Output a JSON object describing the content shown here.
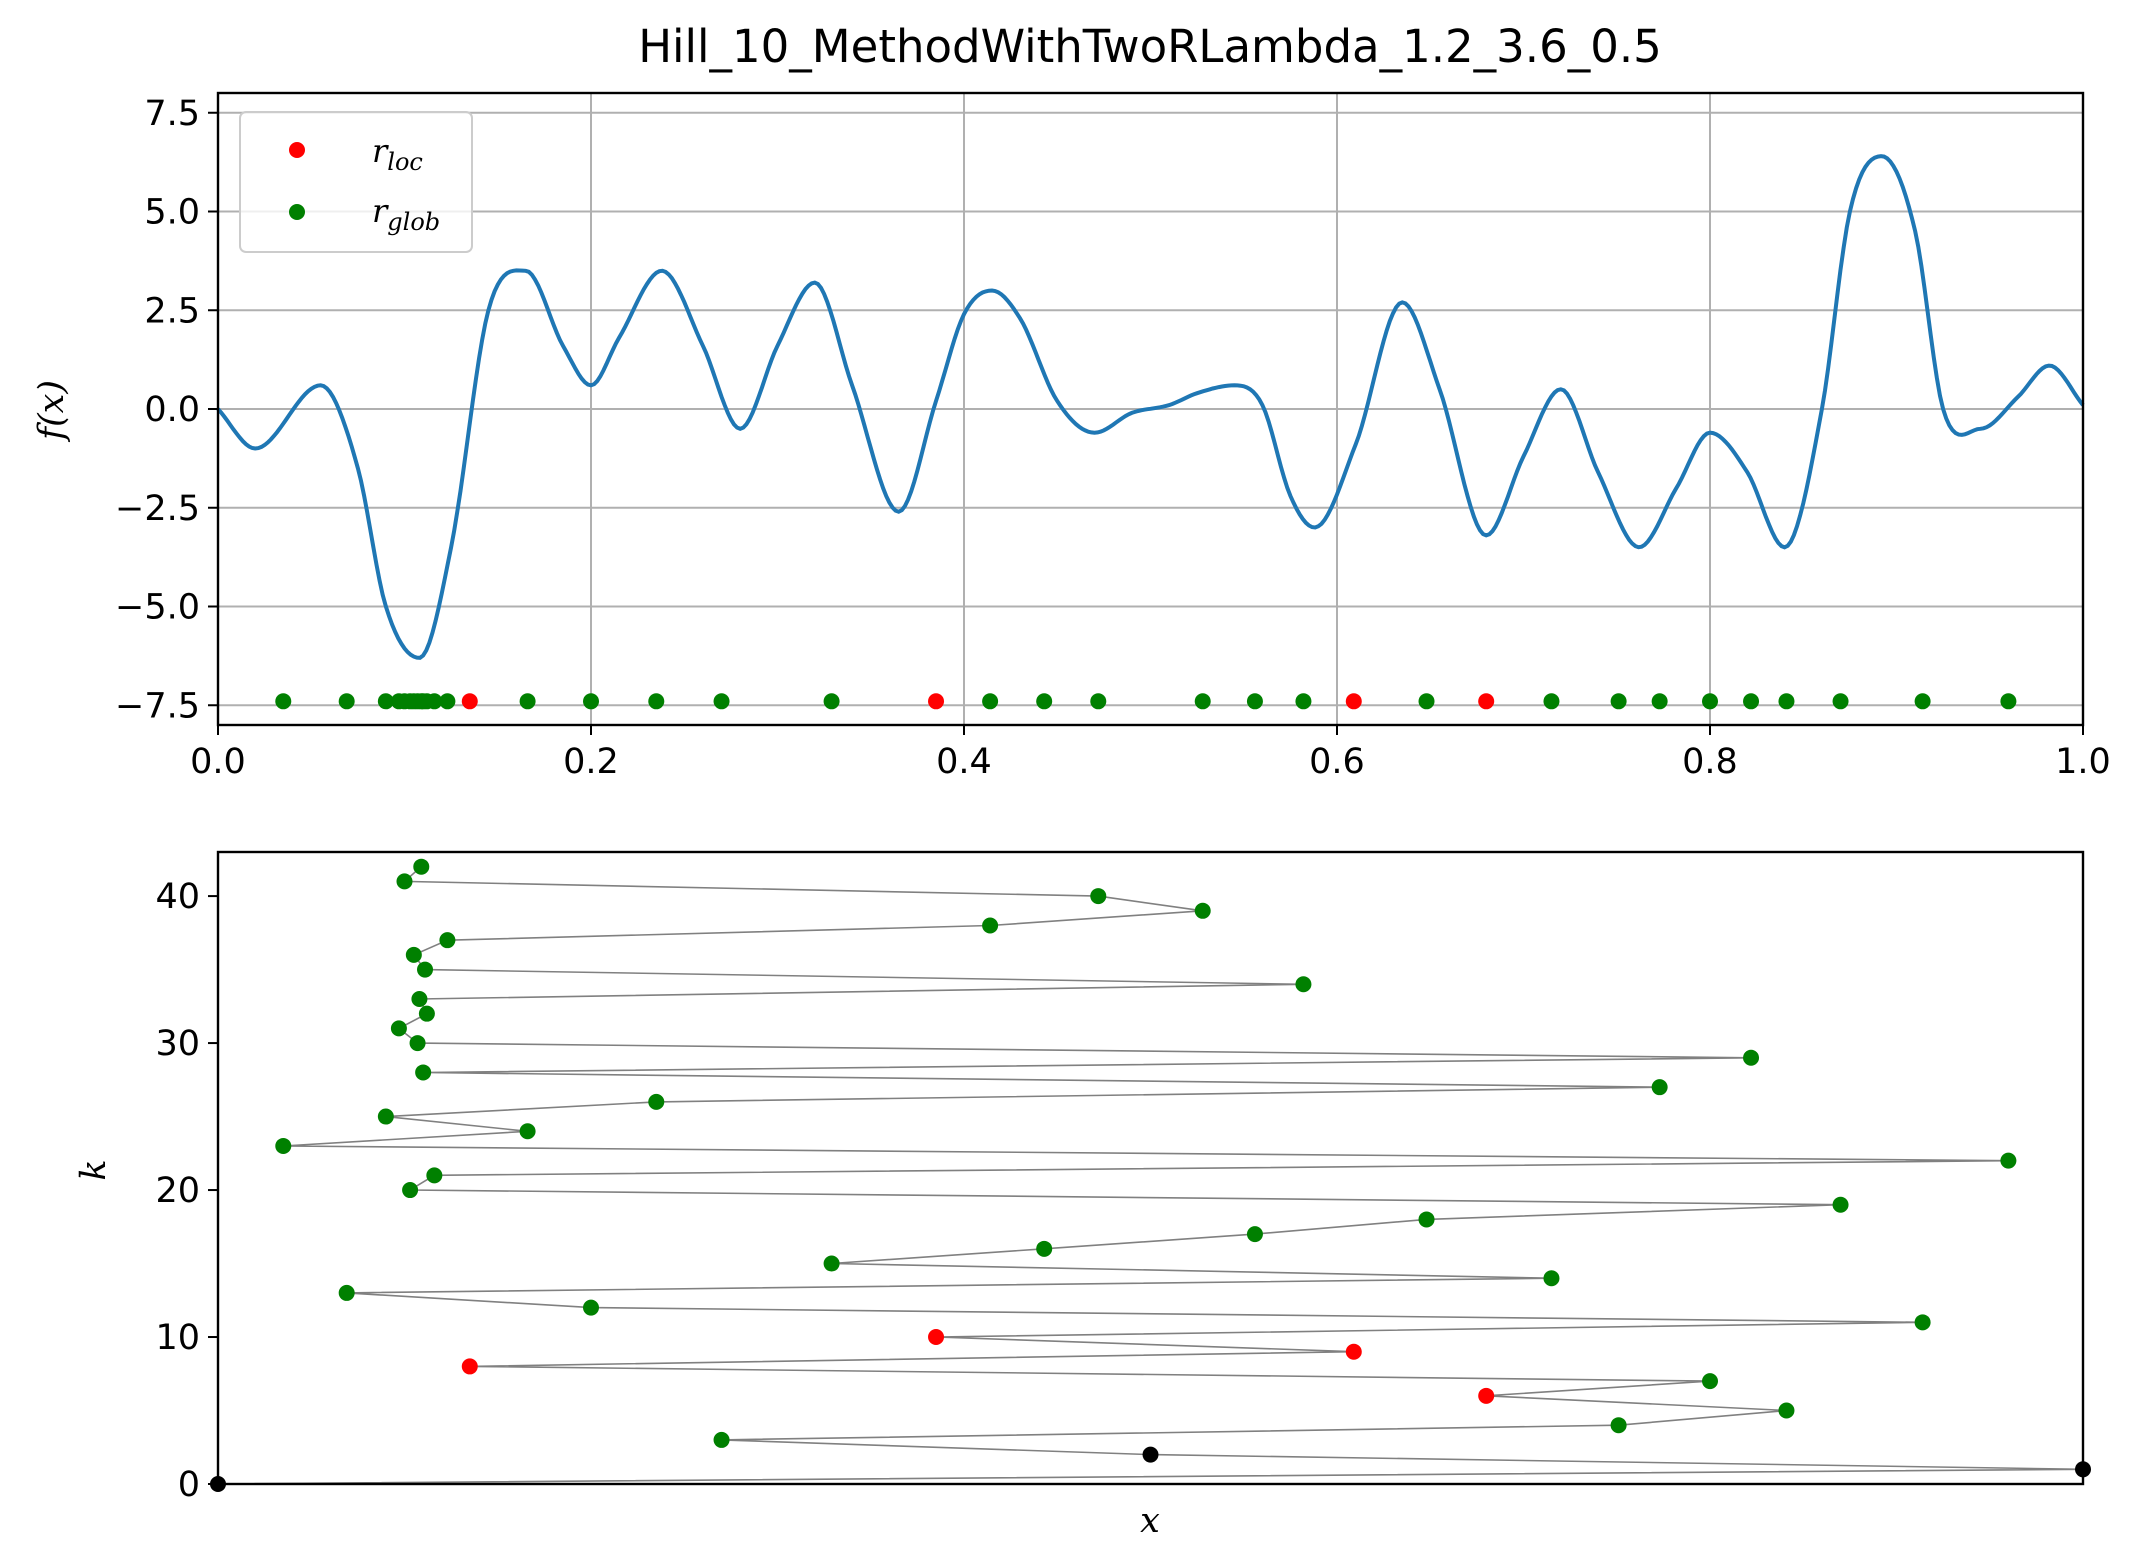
{
  "chart_data": [
    {
      "type": "line",
      "title": "Hill_10_MethodWithTwoRLambda_1.2_3.6_0.5",
      "xlabel": "",
      "ylabel": "f(x)",
      "xlim": [
        0,
        1
      ],
      "ylim": [
        -8,
        8
      ],
      "grid": true,
      "legend_position": "upper-left",
      "xticks": [
        "0.0",
        "0.2",
        "0.4",
        "0.6",
        "0.8",
        "1.0"
      ],
      "xtick_values": [
        0,
        0.2,
        0.4,
        0.6,
        0.8,
        1.0
      ],
      "yticks": [
        "7.5",
        "5.0",
        "2.5",
        "0.0",
        "−2.5",
        "−5.0",
        "−7.5"
      ],
      "ytick_values": [
        7.5,
        5.0,
        2.5,
        0.0,
        -2.5,
        -5.0,
        -7.5
      ],
      "curve": {
        "color": "#1f77b4",
        "x": [
          0,
          0.02,
          0.055,
          0.075,
          0.09,
          0.108,
          0.125,
          0.145,
          0.165,
          0.185,
          0.2,
          0.215,
          0.238,
          0.26,
          0.28,
          0.3,
          0.32,
          0.34,
          0.365,
          0.385,
          0.4,
          0.415,
          0.43,
          0.45,
          0.47,
          0.49,
          0.51,
          0.525,
          0.545,
          0.56,
          0.575,
          0.588,
          0.61,
          0.635,
          0.655,
          0.68,
          0.7,
          0.72,
          0.74,
          0.762,
          0.782,
          0.8,
          0.82,
          0.84,
          0.86,
          0.875,
          0.892,
          0.91,
          0.925,
          0.945,
          0.965,
          0.982,
          1.0
        ],
        "y": [
          0.0,
          -1.0,
          0.6,
          -1.5,
          -5.0,
          -6.3,
          -3.5,
          2.5,
          3.5,
          1.6,
          0.6,
          1.8,
          3.5,
          1.6,
          -0.5,
          1.6,
          3.2,
          0.6,
          -2.6,
          0.2,
          2.4,
          3.0,
          2.3,
          0.2,
          -0.6,
          -0.1,
          0.1,
          0.4,
          0.6,
          0.1,
          -2.2,
          -3.0,
          -0.9,
          2.7,
          0.5,
          -3.2,
          -1.2,
          0.5,
          -1.6,
          -3.5,
          -2.0,
          -0.6,
          -1.6,
          -3.5,
          0.0,
          5.0,
          6.4,
          4.5,
          0.0,
          -0.5,
          0.3,
          1.1,
          0.1
        ]
      },
      "series": [
        {
          "name": "r_loc",
          "legend_main": "r",
          "legend_sub": "loc",
          "color": "#ff0000",
          "x": [
            0.135,
            0.385,
            0.609,
            0.68
          ],
          "y_level": -7.4
        },
        {
          "name": "r_glob",
          "legend_main": "r",
          "legend_sub": "glob",
          "color": "#008000",
          "x": [
            0.035,
            0.069,
            0.09,
            0.097,
            0.1,
            0.103,
            0.105,
            0.107,
            0.109,
            0.11,
            0.112,
            0.116,
            0.123,
            0.166,
            0.2,
            0.235,
            0.27,
            0.329,
            0.414,
            0.443,
            0.472,
            0.528,
            0.556,
            0.582,
            0.648,
            0.715,
            0.751,
            0.773,
            0.8,
            0.822,
            0.841,
            0.87,
            0.914,
            0.96
          ],
          "y_level": -7.4
        }
      ]
    },
    {
      "type": "scatter",
      "title": "",
      "xlabel": "x",
      "ylabel": "k",
      "xlim": [
        0,
        1
      ],
      "ylim": [
        0,
        43
      ],
      "grid": false,
      "yticks": [
        "40",
        "30",
        "20",
        "10",
        "0"
      ],
      "ytick_values": [
        40,
        30,
        20,
        10,
        0
      ],
      "line_color": "#808080",
      "points": [
        {
          "k": 0,
          "x": 0.0,
          "color": "#000000"
        },
        {
          "k": 1,
          "x": 1.0,
          "color": "#000000"
        },
        {
          "k": 2,
          "x": 0.5,
          "color": "#000000"
        },
        {
          "k": 3,
          "x": 0.27,
          "color": "#008000"
        },
        {
          "k": 4,
          "x": 0.751,
          "color": "#008000"
        },
        {
          "k": 5,
          "x": 0.841,
          "color": "#008000"
        },
        {
          "k": 6,
          "x": 0.68,
          "color": "#ff0000"
        },
        {
          "k": 7,
          "x": 0.8,
          "color": "#008000"
        },
        {
          "k": 8,
          "x": 0.135,
          "color": "#ff0000"
        },
        {
          "k": 9,
          "x": 0.609,
          "color": "#ff0000"
        },
        {
          "k": 10,
          "x": 0.385,
          "color": "#ff0000"
        },
        {
          "k": 11,
          "x": 0.914,
          "color": "#008000"
        },
        {
          "k": 12,
          "x": 0.2,
          "color": "#008000"
        },
        {
          "k": 13,
          "x": 0.069,
          "color": "#008000"
        },
        {
          "k": 14,
          "x": 0.715,
          "color": "#008000"
        },
        {
          "k": 15,
          "x": 0.329,
          "color": "#008000"
        },
        {
          "k": 16,
          "x": 0.443,
          "color": "#008000"
        },
        {
          "k": 17,
          "x": 0.556,
          "color": "#008000"
        },
        {
          "k": 18,
          "x": 0.648,
          "color": "#008000"
        },
        {
          "k": 19,
          "x": 0.87,
          "color": "#008000"
        },
        {
          "k": 20,
          "x": 0.103,
          "color": "#008000"
        },
        {
          "k": 21,
          "x": 0.116,
          "color": "#008000"
        },
        {
          "k": 22,
          "x": 0.96,
          "color": "#008000"
        },
        {
          "k": 23,
          "x": 0.035,
          "color": "#008000"
        },
        {
          "k": 24,
          "x": 0.166,
          "color": "#008000"
        },
        {
          "k": 25,
          "x": 0.09,
          "color": "#008000"
        },
        {
          "k": 26,
          "x": 0.235,
          "color": "#008000"
        },
        {
          "k": 27,
          "x": 0.773,
          "color": "#008000"
        },
        {
          "k": 28,
          "x": 0.11,
          "color": "#008000"
        },
        {
          "k": 29,
          "x": 0.822,
          "color": "#008000"
        },
        {
          "k": 30,
          "x": 0.107,
          "color": "#008000"
        },
        {
          "k": 31,
          "x": 0.097,
          "color": "#008000"
        },
        {
          "k": 32,
          "x": 0.112,
          "color": "#008000"
        },
        {
          "k": 33,
          "x": 0.108,
          "color": "#008000"
        },
        {
          "k": 34,
          "x": 0.582,
          "color": "#008000"
        },
        {
          "k": 35,
          "x": 0.111,
          "color": "#008000"
        },
        {
          "k": 36,
          "x": 0.105,
          "color": "#008000"
        },
        {
          "k": 37,
          "x": 0.123,
          "color": "#008000"
        },
        {
          "k": 38,
          "x": 0.414,
          "color": "#008000"
        },
        {
          "k": 39,
          "x": 0.528,
          "color": "#008000"
        },
        {
          "k": 40,
          "x": 0.472,
          "color": "#008000"
        },
        {
          "k": 41,
          "x": 0.1,
          "color": "#008000"
        },
        {
          "k": 42,
          "x": 0.109,
          "color": "#008000"
        }
      ]
    }
  ]
}
